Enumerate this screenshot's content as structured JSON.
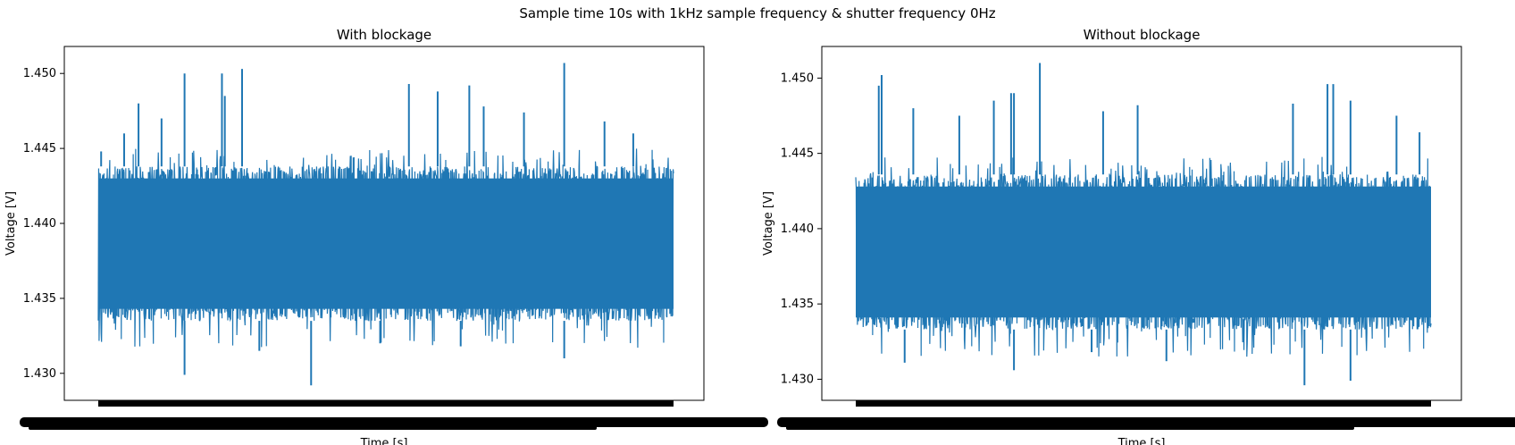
{
  "suptitle": "Sample time 10s with 1kHz sample frequency & shutter frequency 0Hz",
  "colors": {
    "line": "#1f77b4",
    "axes": "#000000",
    "background": "#ffffff"
  },
  "chart_data": [
    {
      "type": "line",
      "title": "With blockage",
      "xlabel": "Time [s]",
      "ylabel": "Voltage [V]",
      "xlim": [
        0,
        10
      ],
      "ylim": [
        1.4282,
        1.4518
      ],
      "yticks": [
        "1.430",
        "1.435",
        "1.440",
        "1.445",
        "1.450"
      ],
      "xtick_labels_overlapping": true,
      "series": [
        {
          "approx_band": {
            "low_dense": 1.4335,
            "high_dense": 1.4438,
            "center": 1.4386
          },
          "spikes_high": [
            [
              0.05,
              1.4448
            ],
            [
              0.45,
              1.446
            ],
            [
              0.7,
              1.448
            ],
            [
              1.1,
              1.447
            ],
            [
              1.5,
              1.45
            ],
            [
              2.15,
              1.45
            ],
            [
              2.2,
              1.4485
            ],
            [
              2.5,
              1.4503
            ],
            [
              5.4,
              1.4493
            ],
            [
              5.9,
              1.4488
            ],
            [
              6.45,
              1.4492
            ],
            [
              6.7,
              1.4478
            ],
            [
              7.4,
              1.4474
            ],
            [
              8.1,
              1.4507
            ],
            [
              8.8,
              1.4468
            ],
            [
              9.3,
              1.446
            ]
          ],
          "spikes_low": [
            [
              1.5,
              1.4299
            ],
            [
              3.7,
              1.4292
            ],
            [
              8.1,
              1.431
            ],
            [
              2.8,
              1.4315
            ],
            [
              6.3,
              1.4318
            ],
            [
              4.9,
              1.432
            ]
          ]
        }
      ]
    },
    {
      "type": "line",
      "title": "Without blockage",
      "xlabel": "Time [s]",
      "ylabel": "Voltage [V]",
      "xlim": [
        0,
        10
      ],
      "ylim": [
        1.4286,
        1.4521
      ],
      "yticks": [
        "1.430",
        "1.435",
        "1.440",
        "1.445",
        "1.450"
      ],
      "xtick_labels_overlapping": true,
      "series": [
        {
          "approx_band": {
            "low_dense": 1.4333,
            "high_dense": 1.4436,
            "center": 1.4385
          },
          "spikes_high": [
            [
              0.4,
              1.4495
            ],
            [
              0.45,
              1.4502
            ],
            [
              1.0,
              1.448
            ],
            [
              1.8,
              1.4475
            ],
            [
              2.4,
              1.4485
            ],
            [
              2.7,
              1.449
            ],
            [
              2.75,
              1.449
            ],
            [
              3.2,
              1.451
            ],
            [
              4.3,
              1.4478
            ],
            [
              4.9,
              1.4482
            ],
            [
              7.6,
              1.4483
            ],
            [
              8.2,
              1.4496
            ],
            [
              8.3,
              1.4496
            ],
            [
              8.6,
              1.4485
            ],
            [
              9.4,
              1.4475
            ],
            [
              9.8,
              1.4464
            ]
          ],
          "spikes_low": [
            [
              0.85,
              1.4311
            ],
            [
              2.75,
              1.4306
            ],
            [
              7.8,
              1.4296
            ],
            [
              8.6,
              1.4299
            ],
            [
              5.4,
              1.4312
            ],
            [
              4.1,
              1.4318
            ]
          ]
        }
      ]
    }
  ]
}
